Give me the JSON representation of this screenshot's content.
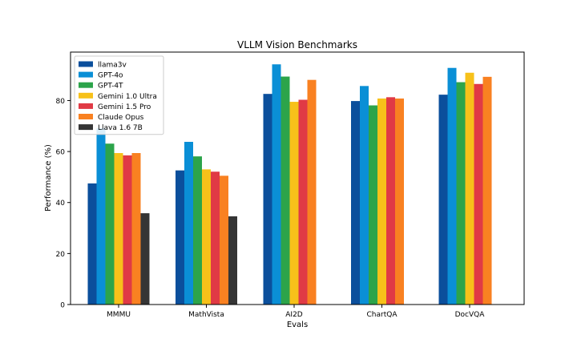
{
  "chart_data": {
    "type": "bar",
    "title": "VLLM Vision Benchmarks",
    "xlabel": "Evals",
    "ylabel": "Performance (%)",
    "ylim": [
      0,
      99
    ],
    "yticks": [
      0,
      20,
      40,
      60,
      80
    ],
    "grid": false,
    "legend_position": "top-left",
    "categories": [
      "MMMU",
      "MathVista",
      "AI2D",
      "ChartQA",
      "DocVQA"
    ],
    "series": [
      {
        "name": "llama3v",
        "color": "#0b4f9c",
        "values": [
          47.5,
          52.6,
          82.6,
          79.8,
          82.3
        ]
      },
      {
        "name": "GPT-4o",
        "color": "#0a8fd6",
        "values": [
          69.1,
          63.8,
          94.2,
          85.7,
          92.8
        ]
      },
      {
        "name": "GPT-4T",
        "color": "#2ca44a",
        "values": [
          63.1,
          58.1,
          89.4,
          78.1,
          87.2
        ]
      },
      {
        "name": "Gemini 1.0 Ultra",
        "color": "#f7c11a",
        "values": [
          59.4,
          53.0,
          79.5,
          80.8,
          90.9
        ]
      },
      {
        "name": "Gemini 1.5 Pro",
        "color": "#e03a45",
        "values": [
          58.5,
          52.1,
          80.3,
          81.3,
          86.5
        ]
      },
      {
        "name": "Claude Opus",
        "color": "#f98121",
        "values": [
          59.4,
          50.5,
          88.1,
          80.8,
          89.3
        ]
      },
      {
        "name": "Llava 1.6 7B",
        "color": "#353535",
        "values": [
          35.8,
          34.6,
          null,
          null,
          null
        ]
      }
    ]
  }
}
